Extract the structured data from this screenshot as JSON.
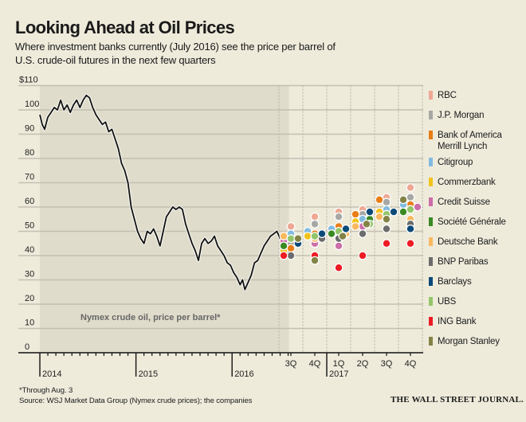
{
  "header": {
    "title": "Looking Ahead at Oil Prices",
    "subtitle": "Where investment banks currently (July 2016) see the price per barrel of U.S. crude-oil futures in the next few quarters"
  },
  "footer": {
    "footnote": "*Through Aug. 3",
    "source": "Source: WSJ Market Data Group (Nymex crude prices); the companies",
    "brand": "THE WALL STREET JOURNAL."
  },
  "chart_data": {
    "type": "line",
    "title": "Looking Ahead at Oil Prices",
    "ylabel": "",
    "xlabel": "",
    "ylim": [
      0,
      110
    ],
    "yticks": [
      "$110",
      "100",
      "90",
      "80",
      "70",
      "60",
      "50",
      "40",
      "30",
      "20",
      "10",
      "0"
    ],
    "ytick_values": [
      110,
      100,
      90,
      80,
      70,
      60,
      50,
      40,
      30,
      20,
      10,
      0
    ],
    "grid": true,
    "annotation": "Nymex crude oil, price per barrel*",
    "history": {
      "name": "Nymex crude oil, price per barrel",
      "x_unit": "months since Jan 2014",
      "xlim": [
        0,
        31.1
      ],
      "year_labels": [
        {
          "label": "2014",
          "month": 0
        },
        {
          "label": "2015",
          "month": 12
        },
        {
          "label": "2016",
          "month": 24
        }
      ],
      "points": [
        [
          0,
          98
        ],
        [
          0.3,
          94
        ],
        [
          0.6,
          92
        ],
        [
          1,
          97
        ],
        [
          1.4,
          99
        ],
        [
          1.8,
          101
        ],
        [
          2.2,
          100
        ],
        [
          2.6,
          104
        ],
        [
          3,
          100
        ],
        [
          3.4,
          102
        ],
        [
          3.8,
          99
        ],
        [
          4.2,
          102
        ],
        [
          4.6,
          104
        ],
        [
          5,
          101
        ],
        [
          5.4,
          104
        ],
        [
          5.8,
          106
        ],
        [
          6.2,
          105
        ],
        [
          6.6,
          101
        ],
        [
          7,
          98
        ],
        [
          7.4,
          96
        ],
        [
          7.8,
          94
        ],
        [
          8.2,
          95
        ],
        [
          8.6,
          91
        ],
        [
          9,
          92
        ],
        [
          9.4,
          88
        ],
        [
          9.8,
          84
        ],
        [
          10.2,
          78
        ],
        [
          10.6,
          75
        ],
        [
          11,
          70
        ],
        [
          11.4,
          60
        ],
        [
          11.8,
          55
        ],
        [
          12.2,
          50
        ],
        [
          12.6,
          47
        ],
        [
          13,
          45
        ],
        [
          13.4,
          50
        ],
        [
          13.8,
          49
        ],
        [
          14.2,
          51
        ],
        [
          14.6,
          48
        ],
        [
          15,
          44
        ],
        [
          15.4,
          50
        ],
        [
          15.8,
          56
        ],
        [
          16.2,
          58
        ],
        [
          16.6,
          60
        ],
        [
          17,
          59
        ],
        [
          17.4,
          60
        ],
        [
          17.8,
          59
        ],
        [
          18.2,
          53
        ],
        [
          18.6,
          49
        ],
        [
          19,
          45
        ],
        [
          19.4,
          42
        ],
        [
          19.8,
          38
        ],
        [
          20.2,
          45
        ],
        [
          20.6,
          47
        ],
        [
          21,
          45
        ],
        [
          21.4,
          46
        ],
        [
          21.8,
          48
        ],
        [
          22.2,
          44
        ],
        [
          22.6,
          42
        ],
        [
          23,
          40
        ],
        [
          23.4,
          37
        ],
        [
          23.8,
          36
        ],
        [
          24.2,
          33
        ],
        [
          24.6,
          31
        ],
        [
          25,
          28
        ],
        [
          25.3,
          30
        ],
        [
          25.6,
          26
        ],
        [
          26,
          29
        ],
        [
          26.4,
          32
        ],
        [
          26.8,
          37
        ],
        [
          27.2,
          38
        ],
        [
          27.6,
          41
        ],
        [
          28,
          44
        ],
        [
          28.4,
          46
        ],
        [
          28.8,
          48
        ],
        [
          29.2,
          49
        ],
        [
          29.6,
          50
        ],
        [
          30,
          47
        ],
        [
          30.4,
          46
        ],
        [
          30.8,
          43
        ],
        [
          31.1,
          40
        ]
      ]
    },
    "forecast": {
      "categories": [
        "3Q",
        "4Q",
        "1Q",
        "2Q",
        "3Q",
        "4Q"
      ],
      "year_label": "2017",
      "year_label_at": "1Q",
      "series": [
        {
          "name": "RBC",
          "color": "#eea894",
          "values": [
            52,
            56,
            58,
            59,
            64,
            68
          ]
        },
        {
          "name": "J.P. Morgan",
          "color": "#a7a7a5",
          "values": [
            45,
            53,
            56,
            57,
            62,
            64
          ]
        },
        {
          "name": "Bank of America Merrill Lynch",
          "color": "#e87d16",
          "values": [
            43,
            49,
            52,
            57,
            63,
            61
          ]
        },
        {
          "name": "Citigroup",
          "color": "#82bbe0",
          "values": [
            49,
            50,
            51,
            55,
            59,
            61
          ]
        },
        {
          "name": "Commerzbank",
          "color": "#f2c31c",
          "values": [
            42,
            48,
            50,
            54,
            58,
            59
          ]
        },
        {
          "name": "Credit Suisse",
          "color": "#cc6ea8",
          "values": [
            46,
            45,
            44,
            52,
            58,
            60
          ]
        },
        {
          "name": "Société Générale",
          "color": "#3a8a23",
          "values": [
            44,
            49,
            49,
            55,
            57,
            58
          ]
        },
        {
          "name": "Deutsche Bank",
          "color": "#f9b960",
          "values": [
            48,
            47,
            49,
            52,
            56,
            55
          ]
        },
        {
          "name": "BNP Paribas",
          "color": "#6c6c6c",
          "values": [
            40,
            47,
            47,
            49,
            51,
            53
          ]
        },
        {
          "name": "Barclays",
          "color": "#0b4a78",
          "values": [
            45,
            49,
            51,
            58,
            58,
            51
          ]
        },
        {
          "name": "UBS",
          "color": "#93c56b",
          "values": [
            47,
            48,
            50,
            53,
            57,
            59
          ]
        },
        {
          "name": "ING Bank",
          "color": "#ec1c24",
          "values": [
            40,
            40,
            35,
            40,
            45,
            45
          ]
        },
        {
          "name": "Morgan Stanley",
          "color": "#838346",
          "values": [
            47,
            38,
            48,
            53,
            55,
            63
          ]
        }
      ]
    }
  },
  "legend": {
    "items": [
      {
        "label": "RBC",
        "color": "#eea894"
      },
      {
        "label": "J.P. Morgan",
        "color": "#a7a7a5"
      },
      {
        "label": "Bank of America Merrill Lynch",
        "line1": "Bank of America",
        "line2": "Merrill Lynch",
        "color": "#e87d16"
      },
      {
        "label": "Citigroup",
        "color": "#82bbe0"
      },
      {
        "label": "Commerzbank",
        "color": "#f2c31c"
      },
      {
        "label": "Credit Suisse",
        "color": "#cc6ea8"
      },
      {
        "label": "Société Générale",
        "color": "#3a8a23"
      },
      {
        "label": "Deutsche Bank",
        "color": "#f9b960"
      },
      {
        "label": "BNP Paribas",
        "color": "#6c6c6c"
      },
      {
        "label": "Barclays",
        "color": "#0b4a78"
      },
      {
        "label": "UBS",
        "color": "#93c56b"
      },
      {
        "label": "ING Bank",
        "color": "#ec1c24"
      },
      {
        "label": "Morgan Stanley",
        "color": "#838346"
      }
    ]
  }
}
